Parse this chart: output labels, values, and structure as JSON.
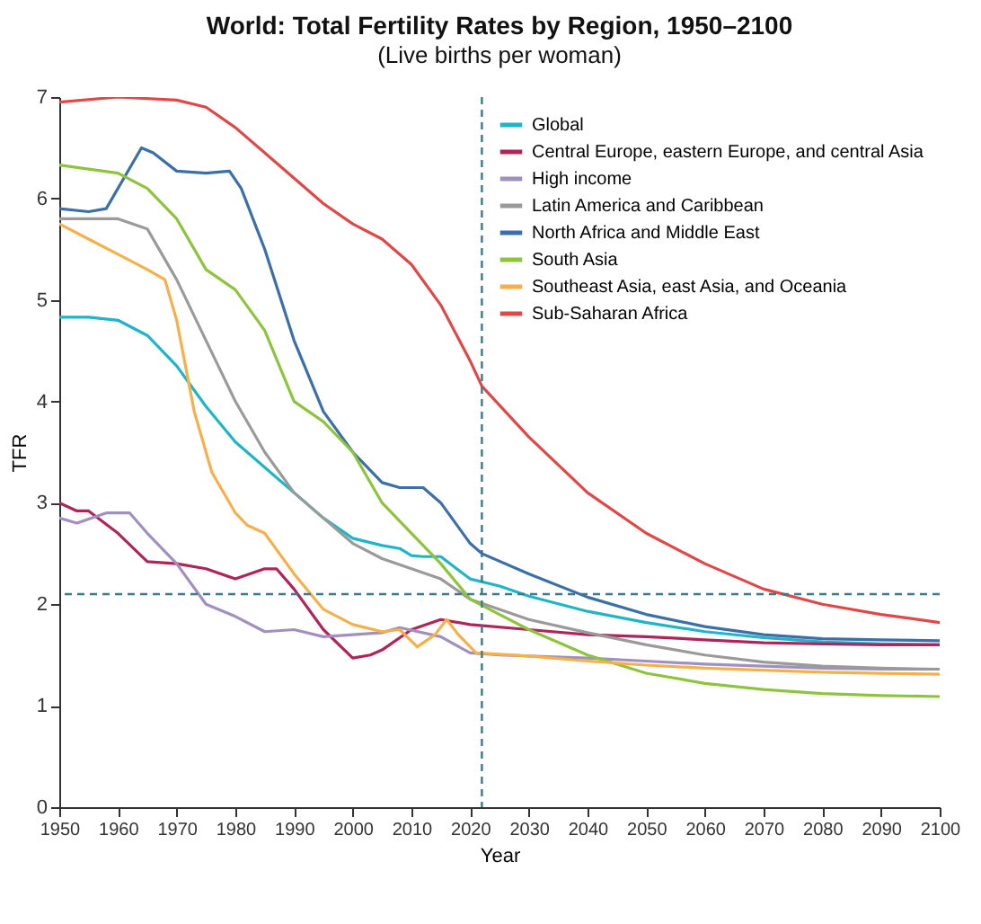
{
  "chart_data": {
    "type": "line",
    "title": "World: Total Fertility Rates by Region, 1950–2100",
    "subtitle": "(Live births per woman)",
    "xlabel": "Year",
    "ylabel": "TFR",
    "xlim": [
      1950,
      2100
    ],
    "ylim": [
      0,
      7
    ],
    "xticks": [
      1950,
      1960,
      1970,
      1980,
      1990,
      2000,
      2010,
      2020,
      2030,
      2040,
      2050,
      2060,
      2070,
      2080,
      2090,
      2100
    ],
    "yticks": [
      0,
      1,
      2,
      3,
      4,
      5,
      6,
      7
    ],
    "grid": false,
    "legend": "top right",
    "line_style": "solid",
    "marker": "none",
    "ref_lines": [
      {
        "axis": "x",
        "value": 2022,
        "color": "#3a7a8a",
        "line_style": "dashed"
      },
      {
        "axis": "y",
        "value": 2.1,
        "color": "#3a7a8a",
        "line_style": "dashed"
      }
    ],
    "series": [
      {
        "name": "Global",
        "color": "#1fb5c8",
        "x": [
          1950,
          1955,
          1960,
          1965,
          1970,
          1975,
          1980,
          1985,
          1990,
          1995,
          2000,
          2005,
          2008,
          2010,
          2012,
          2015,
          2020,
          2025,
          2030,
          2040,
          2050,
          2060,
          2070,
          2080,
          2090,
          2100
        ],
        "values": [
          4.83,
          4.83,
          4.8,
          4.65,
          4.35,
          3.95,
          3.6,
          3.35,
          3.1,
          2.85,
          2.65,
          2.58,
          2.55,
          2.48,
          2.47,
          2.47,
          2.25,
          2.18,
          2.08,
          1.93,
          1.82,
          1.73,
          1.67,
          1.63,
          1.61,
          1.6
        ]
      },
      {
        "name": "Central Europe, eastern Europe, and central Asia",
        "color": "#b0245a",
        "x": [
          1950,
          1953,
          1955,
          1960,
          1965,
          1970,
          1975,
          1980,
          1985,
          1987,
          1990,
          1995,
          2000,
          2003,
          2005,
          2010,
          2015,
          2020,
          2030,
          2040,
          2050,
          2060,
          2070,
          2080,
          2090,
          2100
        ],
        "values": [
          3.0,
          2.92,
          2.92,
          2.7,
          2.42,
          2.4,
          2.35,
          2.25,
          2.35,
          2.35,
          2.15,
          1.75,
          1.47,
          1.5,
          1.55,
          1.75,
          1.85,
          1.8,
          1.75,
          1.7,
          1.68,
          1.65,
          1.62,
          1.61,
          1.6,
          1.6
        ]
      },
      {
        "name": "High income",
        "color": "#a090c0",
        "x": [
          1950,
          1953,
          1958,
          1962,
          1965,
          1970,
          1975,
          1980,
          1985,
          1990,
          1995,
          2000,
          2005,
          2008,
          2015,
          2020,
          2025,
          2030,
          2040,
          2050,
          2060,
          2070,
          2080,
          2090,
          2100
        ],
        "values": [
          2.85,
          2.8,
          2.9,
          2.9,
          2.7,
          2.4,
          2.0,
          1.88,
          1.73,
          1.75,
          1.68,
          1.7,
          1.72,
          1.77,
          1.68,
          1.52,
          1.5,
          1.49,
          1.47,
          1.44,
          1.41,
          1.39,
          1.37,
          1.36,
          1.36
        ]
      },
      {
        "name": "Latin America and Caribbean",
        "color": "#9a9a9a",
        "x": [
          1950,
          1960,
          1965,
          1970,
          1975,
          1980,
          1985,
          1990,
          1995,
          2000,
          2005,
          2010,
          2015,
          2020,
          2025,
          2030,
          2040,
          2050,
          2060,
          2070,
          2080,
          2090,
          2100
        ],
        "values": [
          5.8,
          5.8,
          5.7,
          5.2,
          4.6,
          4.0,
          3.5,
          3.1,
          2.85,
          2.6,
          2.45,
          2.35,
          2.25,
          2.05,
          1.95,
          1.85,
          1.72,
          1.6,
          1.5,
          1.43,
          1.39,
          1.37,
          1.36
        ]
      },
      {
        "name": "North Africa and Middle East",
        "color": "#3a6fa8",
        "x": [
          1950,
          1955,
          1958,
          1962,
          1964,
          1966,
          1970,
          1975,
          1979,
          1981,
          1985,
          1990,
          1995,
          2000,
          2005,
          2008,
          2012,
          2015,
          2020,
          2022,
          2030,
          2040,
          2050,
          2060,
          2070,
          2080,
          2090,
          2100
        ],
        "values": [
          5.9,
          5.87,
          5.9,
          6.3,
          6.5,
          6.45,
          6.27,
          6.25,
          6.27,
          6.1,
          5.5,
          4.6,
          3.9,
          3.5,
          3.2,
          3.15,
          3.15,
          3.0,
          2.6,
          2.5,
          2.3,
          2.07,
          1.9,
          1.78,
          1.7,
          1.66,
          1.65,
          1.64
        ]
      },
      {
        "name": "South Asia",
        "color": "#8cc43c",
        "x": [
          1950,
          1960,
          1965,
          1970,
          1975,
          1980,
          1985,
          1990,
          1995,
          2000,
          2005,
          2010,
          2015,
          2020,
          2025,
          2030,
          2040,
          2050,
          2060,
          2070,
          2080,
          2090,
          2100
        ],
        "values": [
          6.33,
          6.25,
          6.1,
          5.8,
          5.3,
          5.1,
          4.7,
          4.0,
          3.8,
          3.5,
          3.0,
          2.7,
          2.4,
          2.05,
          1.9,
          1.75,
          1.5,
          1.32,
          1.22,
          1.16,
          1.12,
          1.1,
          1.09
        ]
      },
      {
        "name": "Southeast Asia, east Asia, and Oceania",
        "color": "#f5b04a",
        "x": [
          1950,
          1955,
          1960,
          1965,
          1968,
          1970,
          1973,
          1976,
          1980,
          1982,
          1985,
          1990,
          1995,
          2000,
          2005,
          2008,
          2011,
          2014,
          2016,
          2018,
          2021,
          2030,
          2040,
          2050,
          2060,
          2070,
          2080,
          2090,
          2100
        ],
        "values": [
          5.75,
          5.6,
          5.45,
          5.3,
          5.2,
          4.8,
          3.9,
          3.3,
          2.9,
          2.78,
          2.7,
          2.3,
          1.95,
          1.8,
          1.73,
          1.75,
          1.58,
          1.7,
          1.85,
          1.7,
          1.52,
          1.49,
          1.44,
          1.4,
          1.37,
          1.35,
          1.33,
          1.32,
          1.31
        ]
      },
      {
        "name": "Sub-Saharan Africa",
        "color": "#e04848",
        "x": [
          1950,
          1960,
          1970,
          1975,
          1980,
          1985,
          1990,
          1995,
          2000,
          2005,
          2010,
          2015,
          2020,
          2022,
          2030,
          2040,
          2050,
          2060,
          2070,
          2080,
          2090,
          2100
        ],
        "values": [
          6.95,
          7.0,
          6.97,
          6.9,
          6.7,
          6.45,
          6.2,
          5.95,
          5.75,
          5.6,
          5.35,
          4.95,
          4.4,
          4.15,
          3.65,
          3.1,
          2.7,
          2.4,
          2.15,
          2.0,
          1.9,
          1.82
        ]
      }
    ]
  }
}
